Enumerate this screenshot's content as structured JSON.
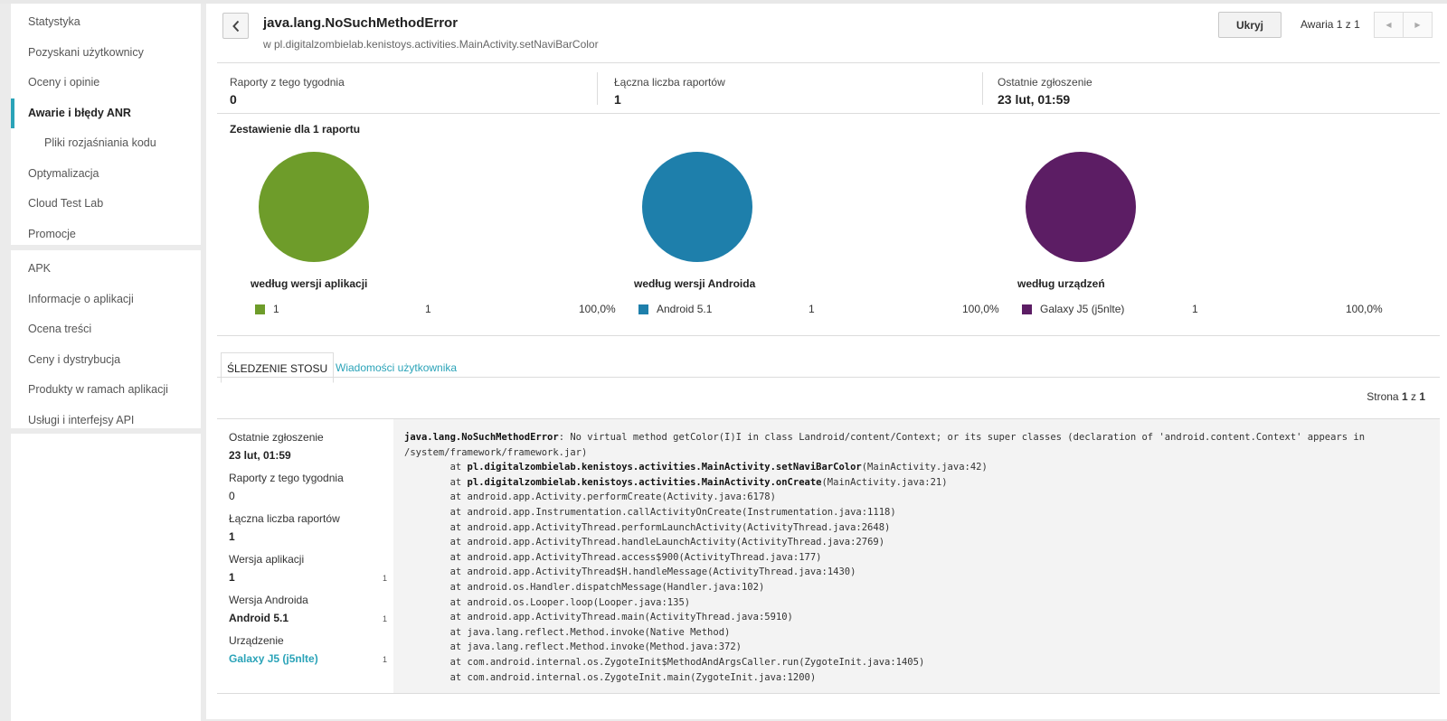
{
  "sidebar": {
    "group1": [
      {
        "label": "Statystyka",
        "active": false
      },
      {
        "label": "Pozyskani użytkownicy",
        "active": false
      },
      {
        "label": "Oceny i opinie",
        "active": false
      },
      {
        "label": "Awarie i błędy ANR",
        "active": true
      },
      {
        "label": "Pliki rozjaśniania kodu",
        "active": false
      },
      {
        "label": "Optymalizacja",
        "active": false
      },
      {
        "label": "Cloud Test Lab",
        "active": false
      },
      {
        "label": "Promocje",
        "active": false
      }
    ],
    "group2": [
      {
        "label": "APK"
      },
      {
        "label": "Informacje o aplikacji"
      },
      {
        "label": "Ocena treści"
      },
      {
        "label": "Ceny i dystrybucja"
      },
      {
        "label": "Produkty w ramach aplikacji"
      },
      {
        "label": "Usługi i interfejsy API"
      }
    ]
  },
  "header": {
    "title": "java.lang.NoSuchMethodError",
    "subtitle": "w pl.digitalzombielab.kenistoys.activities.MainActivity.setNaviBarColor",
    "hide_label": "Ukryj",
    "counter": "Awaria 1 z 1"
  },
  "stats": [
    {
      "label": "Raporty z tego tygodnia",
      "value": "0"
    },
    {
      "label": "Łączna liczba raportów",
      "value": "1"
    },
    {
      "label": "Ostatnie zgłoszenie",
      "value": "23 lut, 01:59"
    }
  ],
  "summary": {
    "title": "Zestawienie dla 1 raportu",
    "groups": [
      {
        "caption": "według wersji aplikacji",
        "color": "#6e9c2a",
        "label": "1",
        "count": "1",
        "percent": "100,0%"
      },
      {
        "caption": "według wersji Androida",
        "color": "#1e7fab",
        "label": "Android 5.1",
        "count": "1",
        "percent": "100,0%"
      },
      {
        "caption": "według urządzeń",
        "color": "#5c1d64",
        "label": "Galaxy J5 (j5nlte)",
        "count": "1",
        "percent": "100,0%"
      }
    ]
  },
  "tabs": {
    "active": "ŚLEDZENIE STOSU",
    "inactive": "Wiadomości użytkownika"
  },
  "page": {
    "prefix": "Strona ",
    "current": "1",
    "sep": " z ",
    "total": "1"
  },
  "details": {
    "last_report_label": "Ostatnie zgłoszenie",
    "last_report_value": "23 lut, 01:59",
    "week_label": "Raporty z tego tygodnia",
    "week_value": "0",
    "total_label": "Łączna liczba raportów",
    "total_value": "1",
    "app_version_label": "Wersja aplikacji",
    "app_version_value": "1",
    "app_version_count": "1",
    "android_label": "Wersja Androida",
    "android_value": "Android 5.1",
    "android_count": "1",
    "device_label": "Urządzenie",
    "device_value": "Galaxy J5 (j5nlte)",
    "device_count": "1"
  },
  "stack_trace": {
    "exception": "java.lang.NoSuchMethodError",
    "message": ": No virtual method getColor(I)I in class Landroid/content/Context; or its super classes (declaration of 'android.content.Context' appears in /system/framework/framework.jar)",
    "frames": [
      {
        "method": "pl.digitalzombielab.kenistoys.activities.MainActivity.setNaviBarColor",
        "location": "(MainActivity.java:42)",
        "bold": true
      },
      {
        "method": "pl.digitalzombielab.kenistoys.activities.MainActivity.onCreate",
        "location": "(MainActivity.java:21)",
        "bold": true
      },
      {
        "method": "android.app.Activity.performCreate",
        "location": "(Activity.java:6178)",
        "bold": false
      },
      {
        "method": "android.app.Instrumentation.callActivityOnCreate",
        "location": "(Instrumentation.java:1118)",
        "bold": false
      },
      {
        "method": "android.app.ActivityThread.performLaunchActivity",
        "location": "(ActivityThread.java:2648)",
        "bold": false
      },
      {
        "method": "android.app.ActivityThread.handleLaunchActivity",
        "location": "(ActivityThread.java:2769)",
        "bold": false
      },
      {
        "method": "android.app.ActivityThread.access$900",
        "location": "(ActivityThread.java:177)",
        "bold": false
      },
      {
        "method": "android.app.ActivityThread$H.handleMessage",
        "location": "(ActivityThread.java:1430)",
        "bold": false
      },
      {
        "method": "android.os.Handler.dispatchMessage",
        "location": "(Handler.java:102)",
        "bold": false
      },
      {
        "method": "android.os.Looper.loop",
        "location": "(Looper.java:135)",
        "bold": false
      },
      {
        "method": "android.app.ActivityThread.main",
        "location": "(ActivityThread.java:5910)",
        "bold": false
      },
      {
        "method": "java.lang.reflect.Method.invoke",
        "location": "(Native Method)",
        "bold": false
      },
      {
        "method": "java.lang.reflect.Method.invoke",
        "location": "(Method.java:372)",
        "bold": false
      },
      {
        "method": "com.android.internal.os.ZygoteInit$MethodAndArgsCaller.run",
        "location": "(ZygoteInit.java:1405)",
        "bold": false
      },
      {
        "method": "com.android.internal.os.ZygoteInit.main",
        "location": "(ZygoteInit.java:1200)",
        "bold": false
      }
    ]
  }
}
